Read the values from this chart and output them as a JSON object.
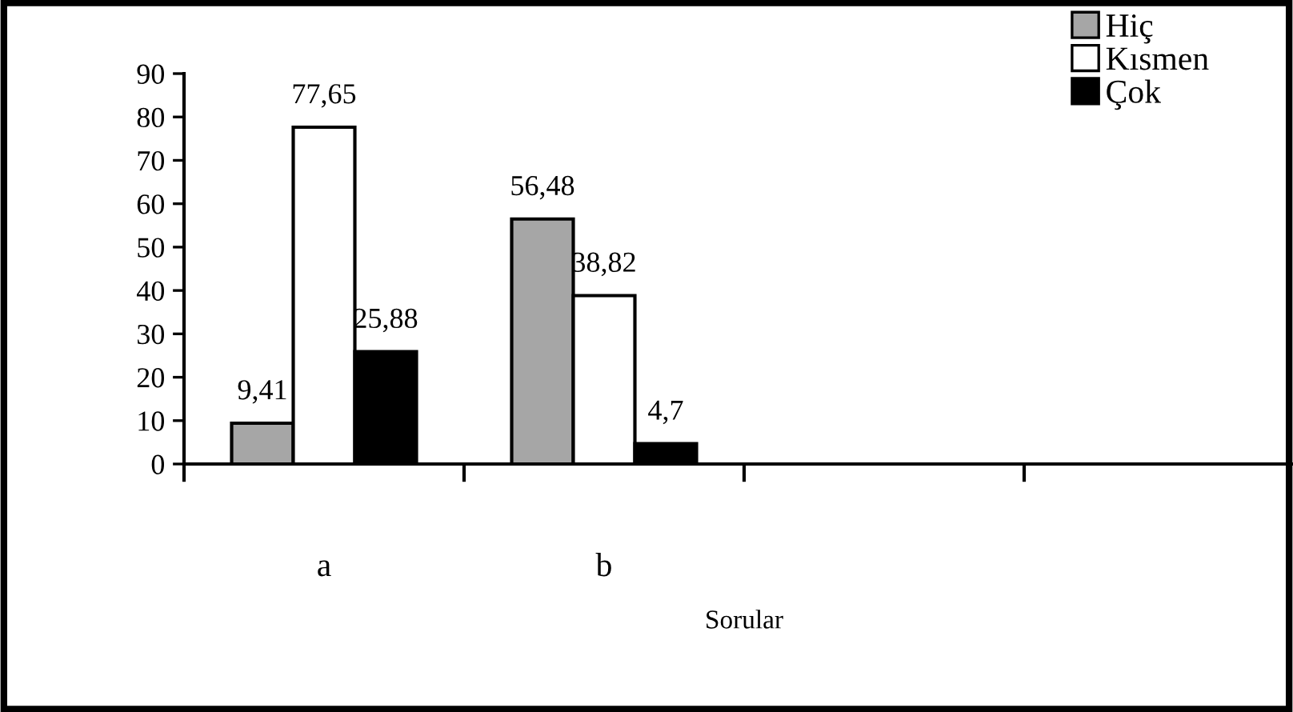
{
  "chart_data": {
    "type": "bar",
    "xlabel": "Sorular",
    "categories": [
      "a",
      "b",
      null,
      null
    ],
    "series": [
      {
        "name": "Hiç",
        "color": "#a6a6a6",
        "values": [
          9.41,
          56.48,
          null,
          null
        ],
        "value_labels": [
          "9,41",
          "56,48",
          null,
          null
        ]
      },
      {
        "name": "Kısmen",
        "color": "#ffffff",
        "values": [
          77.65,
          38.82,
          null,
          null
        ],
        "value_labels": [
          "77,65",
          "38,82",
          null,
          null
        ]
      },
      {
        "name": "Çok",
        "color": "#000000",
        "values": [
          25.88,
          4.7,
          null,
          null
        ],
        "value_labels": [
          "25,88",
          "4,7",
          null,
          null
        ]
      }
    ],
    "ylim": [
      0,
      90
    ],
    "yticks": [
      0,
      10,
      20,
      30,
      40,
      50,
      60,
      70,
      80,
      90
    ],
    "grid": false,
    "legend": "top right"
  }
}
